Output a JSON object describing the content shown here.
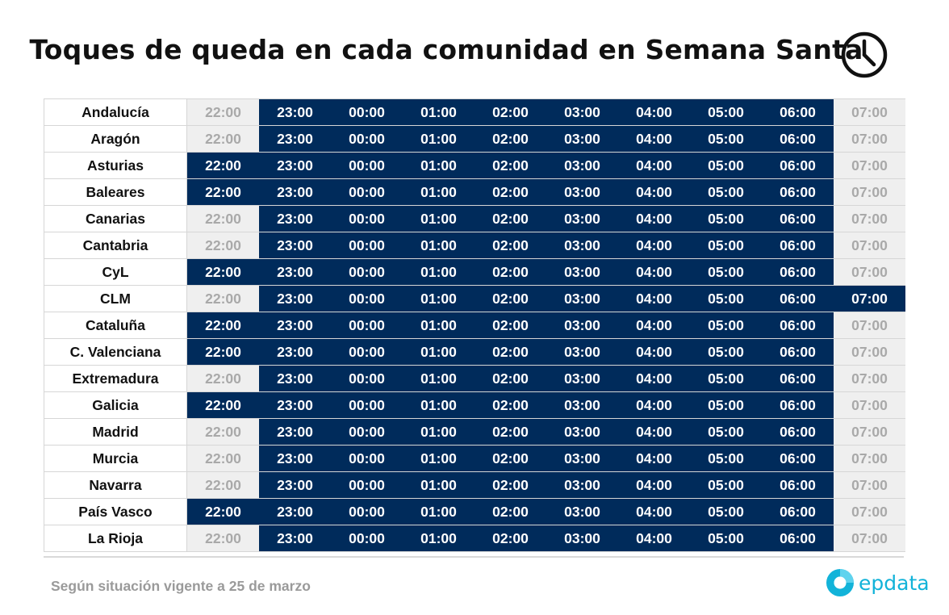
{
  "title": "Toques de queda en cada comunidad en Semana Santa",
  "footnote": "Según situación vigente a 25 de marzo",
  "logo_text": "epdata",
  "icons": {
    "title": "clock-icon",
    "logo": "epdata-logo-icon"
  },
  "colors": {
    "active": "#002b5b",
    "inactive_bg": "#efefef",
    "inactive_text": "#a9a9a9",
    "logo": "#12b3d9"
  },
  "chart_data": {
    "type": "table",
    "title": "Toques de queda en cada comunidad en Semana Santa",
    "hours": [
      "22:00",
      "23:00",
      "00:00",
      "01:00",
      "02:00",
      "03:00",
      "04:00",
      "05:00",
      "06:00",
      "07:00"
    ],
    "rows": [
      {
        "region": "Andalucía",
        "curfew": [
          0,
          1,
          1,
          1,
          1,
          1,
          1,
          1,
          1,
          0
        ]
      },
      {
        "region": "Aragón",
        "curfew": [
          0,
          1,
          1,
          1,
          1,
          1,
          1,
          1,
          1,
          0
        ]
      },
      {
        "region": "Asturias",
        "curfew": [
          1,
          1,
          1,
          1,
          1,
          1,
          1,
          1,
          1,
          0
        ]
      },
      {
        "region": "Baleares",
        "curfew": [
          1,
          1,
          1,
          1,
          1,
          1,
          1,
          1,
          1,
          0
        ]
      },
      {
        "region": "Canarias",
        "curfew": [
          0,
          1,
          1,
          1,
          1,
          1,
          1,
          1,
          1,
          0
        ]
      },
      {
        "region": "Cantabria",
        "curfew": [
          0,
          1,
          1,
          1,
          1,
          1,
          1,
          1,
          1,
          0
        ]
      },
      {
        "region": "CyL",
        "curfew": [
          1,
          1,
          1,
          1,
          1,
          1,
          1,
          1,
          1,
          0
        ]
      },
      {
        "region": "CLM",
        "curfew": [
          0,
          1,
          1,
          1,
          1,
          1,
          1,
          1,
          1,
          1
        ]
      },
      {
        "region": "Cataluña",
        "curfew": [
          1,
          1,
          1,
          1,
          1,
          1,
          1,
          1,
          1,
          0
        ]
      },
      {
        "region": "C. Valenciana",
        "curfew": [
          1,
          1,
          1,
          1,
          1,
          1,
          1,
          1,
          1,
          0
        ]
      },
      {
        "region": "Extremadura",
        "curfew": [
          0,
          1,
          1,
          1,
          1,
          1,
          1,
          1,
          1,
          0
        ]
      },
      {
        "region": "Galicia",
        "curfew": [
          1,
          1,
          1,
          1,
          1,
          1,
          1,
          1,
          1,
          0
        ]
      },
      {
        "region": "Madrid",
        "curfew": [
          0,
          1,
          1,
          1,
          1,
          1,
          1,
          1,
          1,
          0
        ]
      },
      {
        "region": "Murcia",
        "curfew": [
          0,
          1,
          1,
          1,
          1,
          1,
          1,
          1,
          1,
          0
        ]
      },
      {
        "region": "Navarra",
        "curfew": [
          0,
          1,
          1,
          1,
          1,
          1,
          1,
          1,
          1,
          0
        ]
      },
      {
        "region": "País Vasco",
        "curfew": [
          1,
          1,
          1,
          1,
          1,
          1,
          1,
          1,
          1,
          0
        ]
      },
      {
        "region": "La Rioja",
        "curfew": [
          0,
          1,
          1,
          1,
          1,
          1,
          1,
          1,
          1,
          0
        ]
      }
    ]
  }
}
